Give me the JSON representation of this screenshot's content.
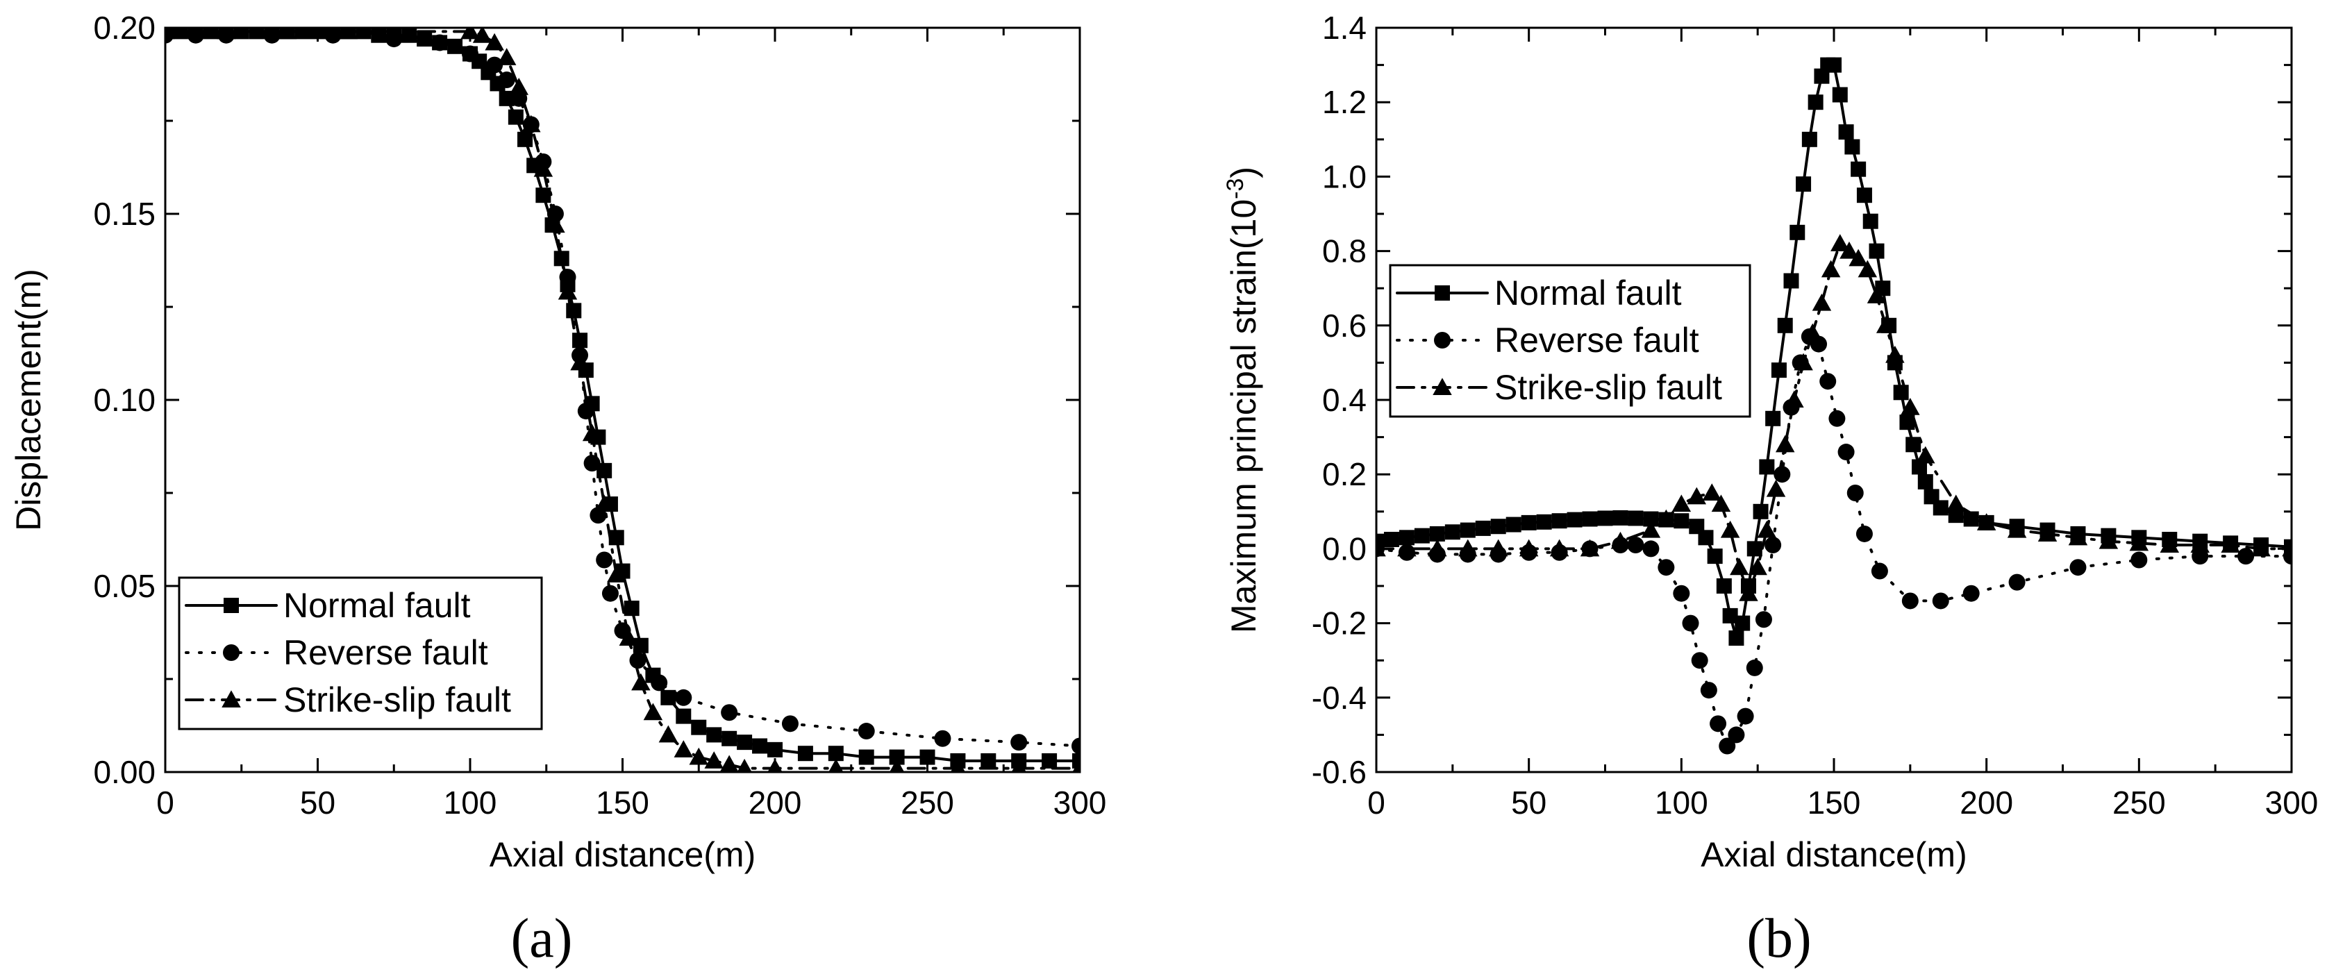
{
  "chart_data": [
    {
      "type": "line",
      "panel_label": "(a)",
      "xlabel": "Axial distance(m)",
      "ylabel": "Displacement(m)",
      "xlim": [
        0,
        300
      ],
      "ylim": [
        0,
        0.2
      ],
      "x_ticks": [
        "0",
        "50",
        "100",
        "150",
        "200",
        "250",
        "300"
      ],
      "y_ticks": [
        "0.00",
        "0.05",
        "0.10",
        "0.15",
        "0.20"
      ],
      "legend_position": "bottom-left",
      "series": [
        {
          "name": "Normal fault",
          "line_style": "solid",
          "marker": "square",
          "x": [
            0,
            5,
            10,
            15,
            20,
            25,
            30,
            35,
            40,
            45,
            50,
            55,
            60,
            65,
            70,
            75,
            80,
            85,
            90,
            95,
            100,
            103,
            106,
            109,
            112,
            115,
            118,
            121,
            124,
            127,
            130,
            132,
            134,
            136,
            138,
            140,
            142,
            144,
            146,
            148,
            150,
            153,
            156,
            160,
            165,
            170,
            175,
            180,
            185,
            190,
            195,
            200,
            210,
            220,
            230,
            240,
            250,
            260,
            270,
            280,
            290,
            300
          ],
          "y": [
            0.199,
            0.199,
            0.199,
            0.199,
            0.199,
            0.199,
            0.199,
            0.199,
            0.199,
            0.199,
            0.199,
            0.199,
            0.199,
            0.199,
            0.198,
            0.198,
            0.198,
            0.197,
            0.196,
            0.195,
            0.193,
            0.191,
            0.188,
            0.185,
            0.181,
            0.176,
            0.17,
            0.163,
            0.155,
            0.147,
            0.138,
            0.131,
            0.124,
            0.116,
            0.108,
            0.099,
            0.09,
            0.081,
            0.072,
            0.063,
            0.054,
            0.044,
            0.034,
            0.026,
            0.02,
            0.015,
            0.012,
            0.01,
            0.009,
            0.008,
            0.007,
            0.006,
            0.005,
            0.005,
            0.004,
            0.004,
            0.004,
            0.003,
            0.003,
            0.003,
            0.003,
            0.003
          ]
        },
        {
          "name": "Reverse fault",
          "line_style": "dotted",
          "marker": "circle",
          "x": [
            0,
            10,
            20,
            35,
            55,
            75,
            90,
            100,
            108,
            112,
            116,
            120,
            124,
            128,
            132,
            136,
            138,
            140,
            142,
            144,
            146,
            150,
            155,
            162,
            170,
            185,
            205,
            230,
            255,
            280,
            300
          ],
          "y": [
            0.198,
            0.198,
            0.198,
            0.198,
            0.198,
            0.197,
            0.196,
            0.193,
            0.19,
            0.186,
            0.181,
            0.174,
            0.164,
            0.15,
            0.133,
            0.112,
            0.097,
            0.083,
            0.069,
            0.057,
            0.048,
            0.038,
            0.03,
            0.024,
            0.02,
            0.016,
            0.013,
            0.011,
            0.009,
            0.008,
            0.007
          ]
        },
        {
          "name": "Strike-slip fault",
          "line_style": "dash-dot",
          "marker": "triangle",
          "x": [
            0,
            20,
            40,
            60,
            80,
            100,
            104,
            108,
            112,
            116,
            120,
            124,
            128,
            132,
            136,
            140,
            144,
            148,
            152,
            156,
            160,
            165,
            170,
            175,
            180,
            185,
            190,
            200,
            220,
            240,
            260,
            280,
            300
          ],
          "y": [
            0.199,
            0.199,
            0.199,
            0.199,
            0.199,
            0.199,
            0.198,
            0.196,
            0.192,
            0.184,
            0.174,
            0.162,
            0.147,
            0.129,
            0.11,
            0.091,
            0.072,
            0.053,
            0.036,
            0.024,
            0.016,
            0.01,
            0.006,
            0.004,
            0.003,
            0.002,
            0.001,
            0.001,
            0.001,
            0.001,
            0.001,
            0.001,
            0.001
          ]
        }
      ]
    },
    {
      "type": "line",
      "panel_label": "(b)",
      "xlabel": "Axial distance(m)",
      "ylabel": "Maximum principal strain(10",
      "ylabel_superscript": "-3",
      "ylabel_suffix": ")",
      "xlim": [
        0,
        300
      ],
      "ylim": [
        -0.6,
        1.4
      ],
      "x_ticks": [
        "0",
        "50",
        "100",
        "150",
        "200",
        "250",
        "300"
      ],
      "y_ticks": [
        "-0.6",
        "-0.4",
        "-0.2",
        "0.0",
        "0.2",
        "0.4",
        "0.6",
        "0.8",
        "1.0",
        "1.2",
        "1.4"
      ],
      "legend_position": "upper-left",
      "series": [
        {
          "name": "Normal fault",
          "line_style": "solid",
          "marker": "square",
          "x": [
            0,
            5,
            10,
            15,
            20,
            25,
            30,
            35,
            40,
            45,
            50,
            55,
            60,
            65,
            70,
            75,
            80,
            85,
            90,
            95,
            100,
            105,
            108,
            111,
            114,
            116,
            118,
            120,
            122,
            124,
            126,
            128,
            130,
            132,
            134,
            136,
            138,
            140,
            142,
            144,
            146,
            148,
            150,
            152,
            154,
            156,
            158,
            160,
            162,
            164,
            166,
            168,
            170,
            172,
            174,
            176,
            178,
            180,
            182,
            185,
            190,
            195,
            200,
            210,
            220,
            230,
            240,
            250,
            260,
            270,
            280,
            290,
            300
          ],
          "y": [
            0.02,
            0.025,
            0.03,
            0.035,
            0.04,
            0.045,
            0.05,
            0.055,
            0.06,
            0.065,
            0.07,
            0.072,
            0.075,
            0.078,
            0.08,
            0.082,
            0.083,
            0.082,
            0.08,
            0.078,
            0.075,
            0.06,
            0.03,
            -0.02,
            -0.1,
            -0.18,
            -0.24,
            -0.2,
            -0.1,
            0.0,
            0.1,
            0.22,
            0.35,
            0.48,
            0.6,
            0.72,
            0.85,
            0.98,
            1.1,
            1.2,
            1.27,
            1.3,
            1.3,
            1.22,
            1.12,
            1.08,
            1.02,
            0.95,
            0.88,
            0.8,
            0.7,
            0.6,
            0.5,
            0.42,
            0.34,
            0.28,
            0.22,
            0.18,
            0.14,
            0.11,
            0.09,
            0.08,
            0.07,
            0.06,
            0.05,
            0.04,
            0.035,
            0.03,
            0.025,
            0.02,
            0.015,
            0.01,
            0.005
          ]
        },
        {
          "name": "Reverse fault",
          "line_style": "dotted",
          "marker": "circle",
          "x": [
            0,
            10,
            20,
            30,
            40,
            50,
            60,
            70,
            80,
            85,
            90,
            95,
            100,
            103,
            106,
            109,
            112,
            115,
            118,
            121,
            124,
            127,
            130,
            133,
            136,
            139,
            142,
            145,
            148,
            151,
            154,
            157,
            160,
            165,
            175,
            185,
            195,
            210,
            230,
            250,
            270,
            285,
            300
          ],
          "y": [
            0.0,
            -0.01,
            -0.015,
            -0.015,
            -0.015,
            -0.01,
            -0.01,
            0.0,
            0.01,
            0.01,
            0.0,
            -0.05,
            -0.12,
            -0.2,
            -0.3,
            -0.38,
            -0.47,
            -0.53,
            -0.5,
            -0.45,
            -0.32,
            -0.19,
            0.01,
            0.2,
            0.38,
            0.5,
            0.57,
            0.55,
            0.45,
            0.35,
            0.26,
            0.15,
            0.04,
            -0.06,
            -0.14,
            -0.14,
            -0.12,
            -0.09,
            -0.05,
            -0.03,
            -0.02,
            -0.02,
            -0.02
          ]
        },
        {
          "name": "Strike-slip fault",
          "line_style": "dash-dot",
          "marker": "triangle",
          "x": [
            0,
            10,
            20,
            30,
            40,
            50,
            60,
            70,
            80,
            90,
            95,
            100,
            105,
            110,
            113,
            116,
            119,
            122,
            125,
            128,
            131,
            134,
            137,
            140,
            143,
            146,
            149,
            152,
            155,
            158,
            161,
            164,
            167,
            170,
            175,
            180,
            190,
            200,
            210,
            220,
            230,
            240,
            250,
            260,
            270,
            280,
            290,
            300
          ],
          "y": [
            0.0,
            0.0,
            0.0,
            0.0,
            0.0,
            0.0,
            0.0,
            0.0,
            0.02,
            0.05,
            0.08,
            0.12,
            0.14,
            0.15,
            0.12,
            0.05,
            -0.05,
            -0.12,
            -0.05,
            0.05,
            0.16,
            0.28,
            0.4,
            0.5,
            0.58,
            0.66,
            0.75,
            0.82,
            0.8,
            0.78,
            0.75,
            0.68,
            0.6,
            0.52,
            0.38,
            0.25,
            0.12,
            0.07,
            0.05,
            0.04,
            0.03,
            0.02,
            0.015,
            0.01,
            0.01,
            0.01,
            0.0,
            0.0
          ]
        }
      ]
    }
  ]
}
